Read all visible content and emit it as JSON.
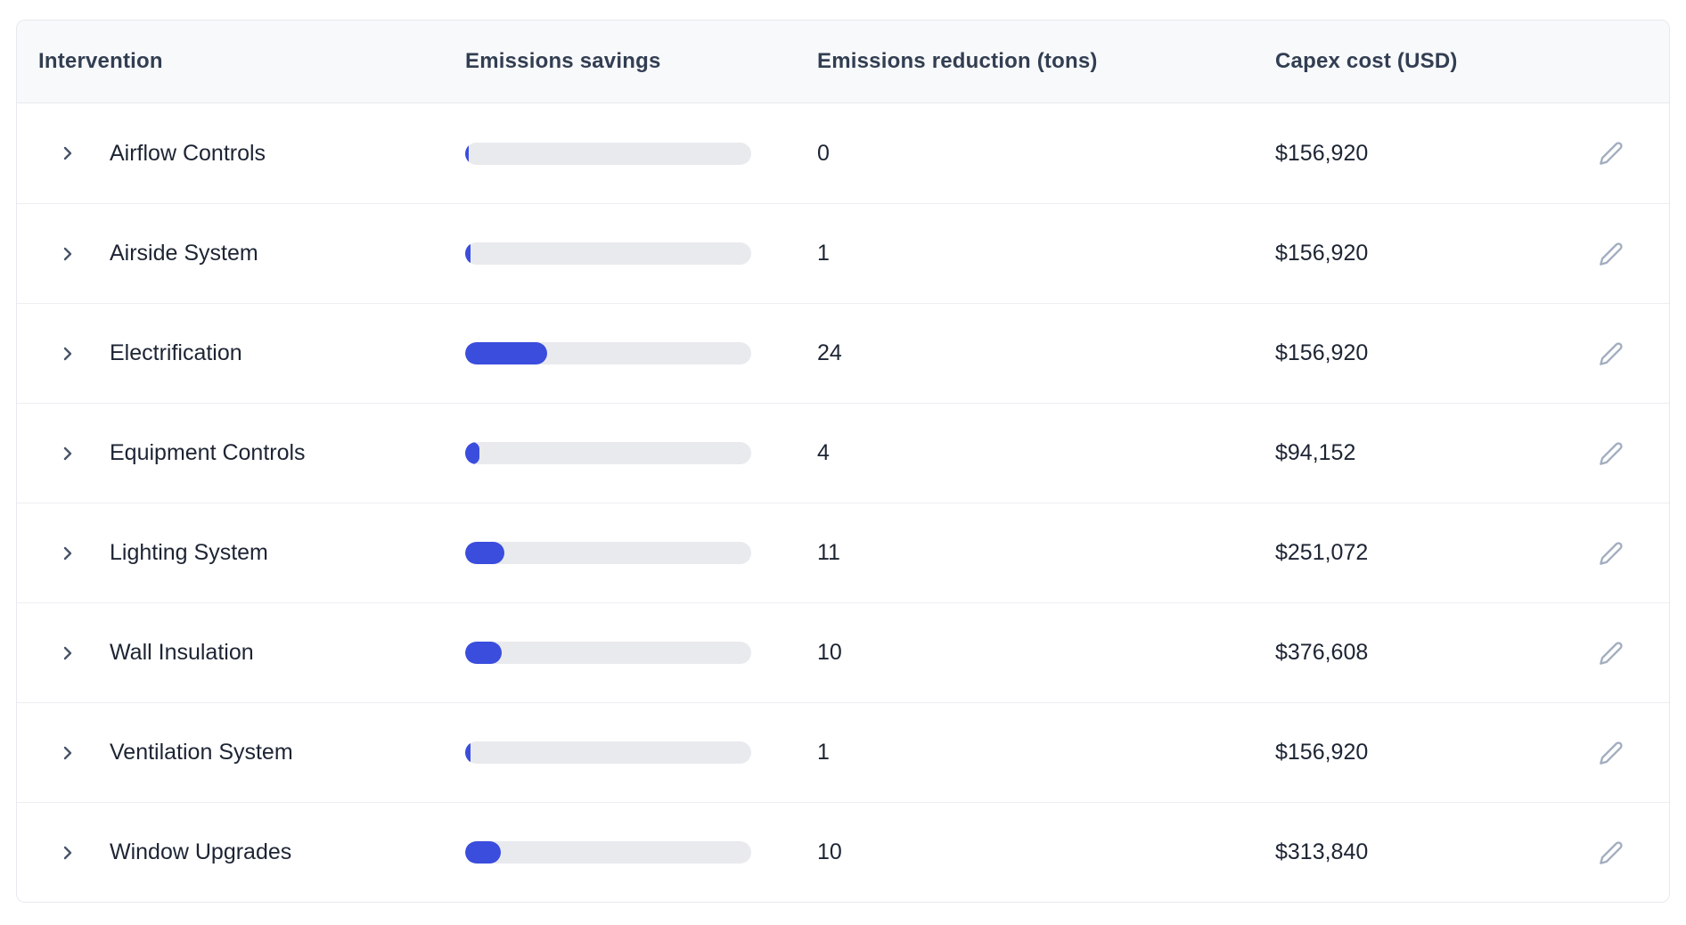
{
  "table": {
    "columns": [
      {
        "label": "Intervention"
      },
      {
        "label": "Emissions savings"
      },
      {
        "label": "Emissions reduction (tons)"
      },
      {
        "label": "Capex cost (USD)"
      }
    ],
    "rows": [
      {
        "name": "Airflow Controls",
        "savings_pct": 1.2,
        "reduction_tons": "0",
        "capex": "$156,920"
      },
      {
        "name": "Airside System",
        "savings_pct": 1.9,
        "reduction_tons": "1",
        "capex": "$156,920"
      },
      {
        "name": "Electrification",
        "savings_pct": 28.7,
        "reduction_tons": "24",
        "capex": "$156,920"
      },
      {
        "name": "Equipment Controls",
        "savings_pct": 5.0,
        "reduction_tons": "4",
        "capex": "$94,152"
      },
      {
        "name": "Lighting System",
        "savings_pct": 13.7,
        "reduction_tons": "11",
        "capex": "$251,072"
      },
      {
        "name": "Wall Insulation",
        "savings_pct": 12.8,
        "reduction_tons": "10",
        "capex": "$376,608"
      },
      {
        "name": "Ventilation System",
        "savings_pct": 1.9,
        "reduction_tons": "1",
        "capex": "$156,920"
      },
      {
        "name": "Window Upgrades",
        "savings_pct": 12.5,
        "reduction_tons": "10",
        "capex": "$313,840"
      }
    ],
    "icons": {
      "expand": "chevron-right-icon",
      "edit": "pencil-icon"
    },
    "colors": {
      "bar_fill": "#3b4ddc",
      "bar_track": "#e9eaee",
      "header_bg": "#f8f9fb",
      "header_text": "#323e52",
      "row_text": "#1d2433",
      "border": "#e7e9ee",
      "chevron": "#475569",
      "pencil": "#a2adbf"
    }
  }
}
